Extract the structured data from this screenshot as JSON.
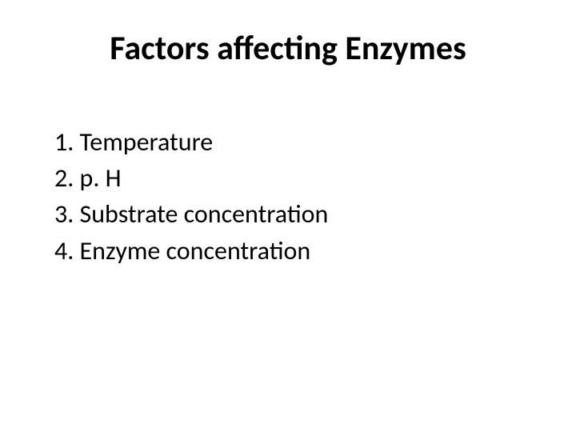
{
  "slide": {
    "title": "Factors affecting Enzymes",
    "items": [
      "1. Temperature",
      "2. p. H",
      "3. Substrate concentration",
      "4. Enzyme concentration"
    ],
    "background_color": "#ffffff",
    "text_color": "#000000",
    "title_fontsize": 42,
    "body_fontsize": 32,
    "font_family": "Calibri"
  }
}
